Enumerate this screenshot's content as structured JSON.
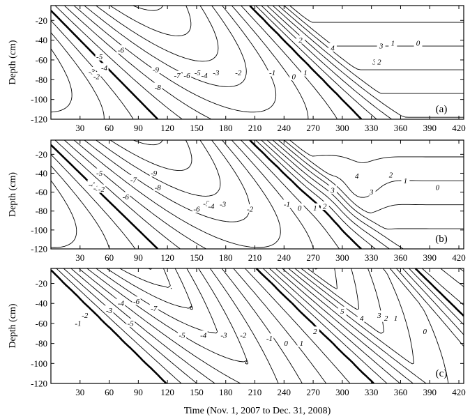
{
  "chart_data": [
    {
      "type": "contour",
      "panel_label": "(a)",
      "xlabel": "",
      "ylabel": "Depth (cm)",
      "xlim": [
        0,
        425
      ],
      "ylim": [
        -120,
        -5
      ],
      "x_ticks": [
        30,
        60,
        90,
        120,
        150,
        180,
        210,
        240,
        270,
        300,
        330,
        360,
        390,
        420
      ],
      "y_ticks": [
        -20,
        -40,
        -60,
        -80,
        -100,
        -120
      ],
      "contour_labels": [
        {
          "text": "-3",
          "x": 42,
          "y": -72
        },
        {
          "text": "-2",
          "x": 47,
          "y": -77
        },
        {
          "text": "-5",
          "x": 50,
          "y": -57
        },
        {
          "text": "-4",
          "x": 55,
          "y": -68
        },
        {
          "text": "-6",
          "x": 72,
          "y": -50
        },
        {
          "text": "-9",
          "x": 108,
          "y": -70
        },
        {
          "text": "-8",
          "x": 110,
          "y": -88
        },
        {
          "text": "-7",
          "x": 130,
          "y": -76
        },
        {
          "text": "-6",
          "x": 140,
          "y": -76
        },
        {
          "text": "-5",
          "x": 151,
          "y": -73
        },
        {
          "text": "-4",
          "x": 158,
          "y": -76
        },
        {
          "text": "-3",
          "x": 170,
          "y": -73
        },
        {
          "text": "-2",
          "x": 193,
          "y": -73
        },
        {
          "text": "-1",
          "x": 228,
          "y": -73
        },
        {
          "text": "0",
          "x": 250,
          "y": -77
        },
        {
          "text": "1",
          "x": 262,
          "y": -73
        },
        {
          "text": "2",
          "x": 257,
          "y": -40
        },
        {
          "text": "4",
          "x": 290,
          "y": -48
        },
        {
          "text": "3",
          "x": 340,
          "y": -46
        },
        {
          "text": "3",
          "x": 333,
          "y": -62
        },
        {
          "text": "2",
          "x": 338,
          "y": -62
        },
        {
          "text": "1",
          "x": 352,
          "y": -43
        },
        {
          "text": "0",
          "x": 378,
          "y": -43
        }
      ]
    },
    {
      "type": "contour",
      "panel_label": "(b)",
      "xlabel": "",
      "ylabel": "Depth (cm)",
      "xlim": [
        0,
        425
      ],
      "ylim": [
        -120,
        -5
      ],
      "x_ticks": [
        30,
        60,
        90,
        120,
        150,
        180,
        210,
        240,
        270,
        300,
        330,
        360,
        390,
        420
      ],
      "y_ticks": [
        -20,
        -40,
        -60,
        -80,
        -100,
        -120
      ],
      "contour_labels": [
        {
          "text": "-5",
          "x": 50,
          "y": -40
        },
        {
          "text": "-4",
          "x": 42,
          "y": -52
        },
        {
          "text": "-3",
          "x": 47,
          "y": -56
        },
        {
          "text": "-2",
          "x": 52,
          "y": -57
        },
        {
          "text": "-7",
          "x": 85,
          "y": -47
        },
        {
          "text": "-6",
          "x": 77,
          "y": -65
        },
        {
          "text": "-9",
          "x": 106,
          "y": -40
        },
        {
          "text": "-8",
          "x": 110,
          "y": -55
        },
        {
          "text": "-6",
          "x": 150,
          "y": -78
        },
        {
          "text": "-5",
          "x": 160,
          "y": -72
        },
        {
          "text": "-4",
          "x": 165,
          "y": -75
        },
        {
          "text": "-3",
          "x": 177,
          "y": -73
        },
        {
          "text": "-2",
          "x": 205,
          "y": -78
        },
        {
          "text": "-1",
          "x": 243,
          "y": -73
        },
        {
          "text": "0",
          "x": 256,
          "y": -77
        },
        {
          "text": "1",
          "x": 272,
          "y": -77
        },
        {
          "text": "2",
          "x": 282,
          "y": -75
        },
        {
          "text": "3",
          "x": 290,
          "y": -58
        },
        {
          "text": "4",
          "x": 315,
          "y": -43
        },
        {
          "text": "3",
          "x": 330,
          "y": -60
        },
        {
          "text": "2",
          "x": 350,
          "y": -42
        },
        {
          "text": "1",
          "x": 365,
          "y": -48
        },
        {
          "text": "0",
          "x": 398,
          "y": -55
        }
      ]
    },
    {
      "type": "contour",
      "panel_label": "(c)",
      "xlabel": "Time (Nov. 1, 2007 to Dec. 31, 2008)",
      "ylabel": "Depth (cm)",
      "xlim": [
        0,
        425
      ],
      "ylim": [
        -120,
        -5
      ],
      "x_ticks": [
        30,
        60,
        90,
        120,
        150,
        180,
        210,
        240,
        270,
        300,
        330,
        360,
        390,
        420
      ],
      "y_ticks": [
        -20,
        -40,
        -60,
        -80,
        -100,
        -120
      ],
      "contour_labels": [
        {
          "text": "-2",
          "x": 35,
          "y": -52
        },
        {
          "text": "-1",
          "x": 28,
          "y": -60
        },
        {
          "text": "-3",
          "x": 60,
          "y": -47
        },
        {
          "text": "-4",
          "x": 72,
          "y": -40
        },
        {
          "text": "-6",
          "x": 88,
          "y": -38
        },
        {
          "text": "-7",
          "x": 106,
          "y": -45
        },
        {
          "text": "-5",
          "x": 82,
          "y": -60
        },
        {
          "text": "-5",
          "x": 135,
          "y": -72
        },
        {
          "text": "-4",
          "x": 157,
          "y": -72
        },
        {
          "text": "-3",
          "x": 178,
          "y": -72
        },
        {
          "text": "-2",
          "x": 198,
          "y": -72
        },
        {
          "text": "-1",
          "x": 225,
          "y": -75
        },
        {
          "text": "0",
          "x": 242,
          "y": -80
        },
        {
          "text": "1",
          "x": 258,
          "y": -80
        },
        {
          "text": "2",
          "x": 272,
          "y": -68
        },
        {
          "text": "5",
          "x": 300,
          "y": -48
        },
        {
          "text": "4",
          "x": 320,
          "y": -55
        },
        {
          "text": "3",
          "x": 338,
          "y": -52
        },
        {
          "text": "2",
          "x": 345,
          "y": -55
        },
        {
          "text": "1",
          "x": 355,
          "y": -55
        },
        {
          "text": "0",
          "x": 385,
          "y": -68
        }
      ]
    }
  ]
}
